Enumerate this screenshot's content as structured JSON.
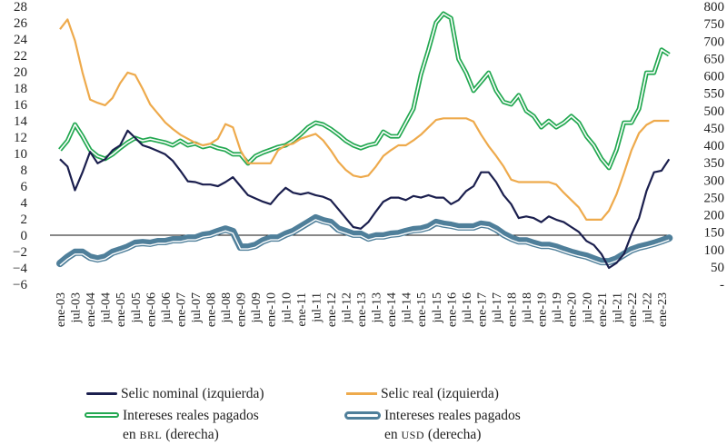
{
  "chart_data": {
    "type": "line",
    "title": "",
    "xlabel": "",
    "ylabel_left": "",
    "ylabel_right": "",
    "x_tick_labels": [
      "ene-03",
      "jul-03",
      "ene-04",
      "jul-04",
      "ene-05",
      "jul-05",
      "ene-06",
      "jul-06",
      "ene-07",
      "jul-07",
      "ene-08",
      "jul-08",
      "ene-09",
      "jul-09",
      "ene-10",
      "jul-10",
      "ene-11",
      "jul-11",
      "ene-12",
      "jul-12",
      "ene-13",
      "jul-13",
      "ene-14",
      "jul-14",
      "ene-15",
      "jul-15",
      "ene-16",
      "jul-16",
      "ene-17",
      "jul-17",
      "ene-18",
      "jul-18",
      "ene-19",
      "jul-19",
      "ene-20",
      "jul-20",
      "ene-21",
      "jul-21",
      "ene-22",
      "jul-22",
      "ene-23"
    ],
    "y_left": {
      "ylim": [
        -6,
        28
      ],
      "tick_labels": [
        "28",
        "26",
        "24",
        "22",
        "20",
        "18",
        "16",
        "14",
        "12",
        "10",
        "8",
        "6",
        "4",
        "2",
        "0",
        "−2",
        "−4",
        "−6"
      ]
    },
    "y_right": {
      "ylim": [
        0,
        800
      ],
      "tick_labels": [
        "800",
        "750",
        "700",
        "650",
        "600",
        "550",
        "500",
        "450",
        "400",
        "350",
        "300",
        "250",
        "200",
        "150",
        "100",
        "50",
        "-"
      ]
    },
    "zero_line": true,
    "grid": false,
    "legend_position": "bottom",
    "x": [
      "2003-01",
      "2003-04",
      "2003-07",
      "2003-10",
      "2004-01",
      "2004-04",
      "2004-07",
      "2004-10",
      "2005-01",
      "2005-04",
      "2005-07",
      "2005-10",
      "2006-01",
      "2006-04",
      "2006-07",
      "2006-10",
      "2007-01",
      "2007-04",
      "2007-07",
      "2007-10",
      "2008-01",
      "2008-04",
      "2008-07",
      "2008-10",
      "2009-01",
      "2009-04",
      "2009-07",
      "2009-10",
      "2010-01",
      "2010-04",
      "2010-07",
      "2010-10",
      "2011-01",
      "2011-04",
      "2011-07",
      "2011-10",
      "2012-01",
      "2012-04",
      "2012-07",
      "2012-10",
      "2013-01",
      "2013-04",
      "2013-07",
      "2013-10",
      "2014-01",
      "2014-04",
      "2014-07",
      "2014-10",
      "2015-01",
      "2015-04",
      "2015-07",
      "2015-10",
      "2016-01",
      "2016-04",
      "2016-07",
      "2016-10",
      "2017-01",
      "2017-04",
      "2017-07",
      "2017-10",
      "2018-01",
      "2018-04",
      "2018-07",
      "2018-10",
      "2019-01",
      "2019-04",
      "2019-07",
      "2019-10",
      "2020-01",
      "2020-04",
      "2020-07",
      "2020-10",
      "2021-01",
      "2021-04",
      "2021-07",
      "2021-10",
      "2022-01",
      "2022-04",
      "2022-07",
      "2022-10",
      "2023-01",
      "2023-04"
    ],
    "series": [
      {
        "name": "Selic nominal (izquierda)",
        "axis": "left",
        "color": "#1b1f4e",
        "style": "thin",
        "values": [
          9.3,
          8.4,
          5.5,
          7.7,
          10.2,
          8.8,
          9.3,
          10.4,
          11,
          12.8,
          11.9,
          11,
          10.7,
          10.3,
          9.9,
          9.1,
          7.9,
          6.6,
          6.5,
          6.2,
          6.2,
          6,
          6.5,
          7.1,
          6,
          4.9,
          4.5,
          4.1,
          3.8,
          4.9,
          5.8,
          5.2,
          5,
          5.2,
          4.9,
          4.7,
          4.3,
          3.2,
          2.1,
          1,
          0.8,
          1.6,
          2.9,
          4.1,
          4.6,
          4.6,
          4.3,
          4.8,
          4.6,
          4.9,
          4.6,
          4.6,
          3.8,
          4.3,
          5.4,
          6,
          7.7,
          7.7,
          6.5,
          4.9,
          3.8,
          2.1,
          2.3,
          2.1,
          1.6,
          2.3,
          1.9,
          1.6,
          1,
          0.4,
          -0.7,
          -1.2,
          -2.3,
          -4,
          -3.4,
          -2.3,
          0.1,
          2.1,
          5.4,
          7.7,
          7.9,
          9.3
        ]
      },
      {
        "name": "Selic real (izquierda)",
        "axis": "left",
        "color": "#eeaa4c",
        "style": "thin",
        "values": [
          25.2,
          26.4,
          23.8,
          19.9,
          16.6,
          16.2,
          15.9,
          16.8,
          18.6,
          19.9,
          19.6,
          17.9,
          16,
          14.9,
          13.8,
          13,
          12.3,
          11.8,
          11.3,
          11,
          11.2,
          11.8,
          13.6,
          13.2,
          10.4,
          8.8,
          8.8,
          8.8,
          8.8,
          10.4,
          11,
          11.2,
          11.8,
          12.1,
          12.4,
          11.6,
          10.4,
          9,
          8,
          7.3,
          7.1,
          7.3,
          8.4,
          9.7,
          10.4,
          11,
          11,
          11.6,
          12.3,
          13.2,
          14.1,
          14.3,
          14.3,
          14.3,
          14.3,
          13.9,
          12.3,
          10.9,
          9.7,
          8.4,
          6.8,
          6.5,
          6.5,
          6.5,
          6.5,
          6.5,
          6.2,
          5.2,
          4.3,
          3.4,
          1.9,
          1.9,
          1.9,
          3,
          5,
          7.6,
          10.4,
          12.5,
          13.5,
          14,
          14,
          14
        ]
      },
      {
        "name": "Intereses reales pagados en BRL (derecha)",
        "axis": "right",
        "color": "#23a851",
        "style": "double",
        "values": [
          387,
          413,
          460,
          426,
          387,
          369,
          361,
          374,
          392,
          408,
          421,
          413,
          418,
          413,
          408,
          400,
          413,
          400,
          405,
          395,
          400,
          392,
          387,
          374,
          374,
          348,
          369,
          379,
          387,
          395,
          400,
          413,
          431,
          452,
          465,
          460,
          447,
          431,
          413,
          400,
          392,
          400,
          405,
          439,
          426,
          426,
          465,
          505,
          604,
          675,
          753,
          779,
          766,
          648,
          609,
          557,
          583,
          609,
          557,
          525,
          518,
          544,
          499,
          484,
          452,
          470,
          452,
          465,
          484,
          465,
          426,
          400,
          361,
          335,
          387,
          465,
          465,
          505,
          609,
          609,
          675,
          661
        ]
      },
      {
        "name": "Intereses reales pagados en USD (derecha)",
        "axis": "right",
        "color": "#4f7f9a",
        "style": "thick-double",
        "values": [
          60,
          78,
          92,
          92,
          78,
          73,
          78,
          92,
          99,
          107,
          118,
          120,
          118,
          123,
          123,
          128,
          128,
          133,
          133,
          141,
          144,
          152,
          159,
          152,
          107,
          107,
          112,
          125,
          133,
          133,
          144,
          152,
          165,
          178,
          191,
          183,
          178,
          159,
          152,
          144,
          144,
          133,
          139,
          139,
          144,
          146,
          152,
          157,
          159,
          165,
          178,
          173,
          170,
          165,
          165,
          165,
          173,
          170,
          159,
          144,
          133,
          125,
          125,
          118,
          112,
          112,
          107,
          99,
          92,
          86,
          81,
          73,
          65,
          65,
          73,
          86,
          99,
          107,
          112,
          118,
          125,
          133
        ]
      }
    ]
  },
  "legend": {
    "items": [
      {
        "label": "Selic nominal (izquierda)"
      },
      {
        "label": "Selic real (izquierda)"
      },
      {
        "label_line1": "Intereses reales pagados",
        "label_prefix": "en ",
        "label_unit": "BRL",
        "label_suffix": " (derecha)"
      },
      {
        "label_line1": "Intereses reales pagados",
        "label_prefix": "en ",
        "label_unit": "USD",
        "label_suffix": " (derecha)"
      }
    ]
  }
}
